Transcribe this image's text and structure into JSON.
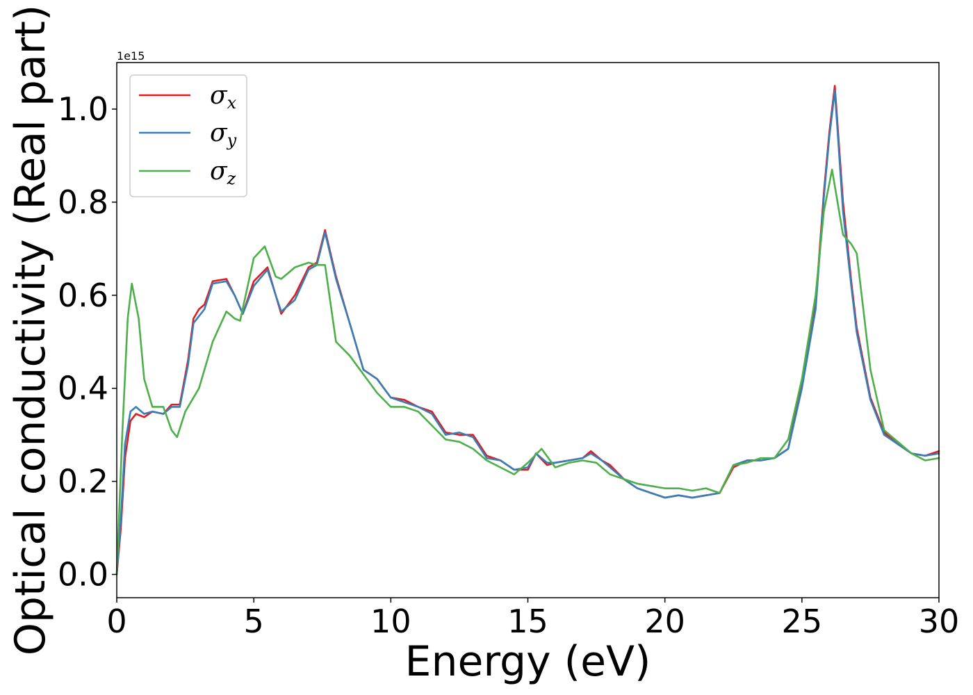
{
  "chart_data": {
    "type": "line",
    "xlabel": "Energy (eV)",
    "ylabel": "Optical conductivity (Real part)",
    "offset_text": "1e15",
    "xlim": [
      0,
      30
    ],
    "ylim": [
      -0.05,
      1.1
    ],
    "xticks": [
      0,
      5,
      10,
      15,
      20,
      25,
      30
    ],
    "xtick_labels": [
      "0",
      "5",
      "10",
      "15",
      "20",
      "25",
      "30"
    ],
    "yticks": [
      0.0,
      0.2,
      0.4,
      0.6,
      0.8,
      1.0
    ],
    "ytick_labels": [
      "0.0",
      "0.2",
      "0.4",
      "0.6",
      "0.8",
      "1.0"
    ],
    "grid": false,
    "legend_position": "upper-left",
    "series": [
      {
        "name": "σx",
        "symbol": "σ",
        "sub": "x",
        "color": "#e41a1c",
        "points": [
          [
            0,
            0.0
          ],
          [
            0.15,
            0.1
          ],
          [
            0.3,
            0.25
          ],
          [
            0.5,
            0.33
          ],
          [
            0.7,
            0.345
          ],
          [
            1.0,
            0.338
          ],
          [
            1.3,
            0.35
          ],
          [
            1.7,
            0.345
          ],
          [
            2.0,
            0.365
          ],
          [
            2.3,
            0.365
          ],
          [
            2.6,
            0.46
          ],
          [
            2.8,
            0.55
          ],
          [
            3.0,
            0.57
          ],
          [
            3.2,
            0.58
          ],
          [
            3.5,
            0.63
          ],
          [
            4.0,
            0.635
          ],
          [
            4.3,
            0.6
          ],
          [
            4.6,
            0.56
          ],
          [
            5.0,
            0.63
          ],
          [
            5.5,
            0.66
          ],
          [
            5.8,
            0.6
          ],
          [
            6.0,
            0.56
          ],
          [
            6.5,
            0.6
          ],
          [
            7.0,
            0.66
          ],
          [
            7.3,
            0.67
          ],
          [
            7.6,
            0.74
          ],
          [
            8.0,
            0.64
          ],
          [
            8.5,
            0.54
          ],
          [
            9.0,
            0.44
          ],
          [
            9.5,
            0.42
          ],
          [
            10.0,
            0.38
          ],
          [
            10.5,
            0.375
          ],
          [
            11.0,
            0.36
          ],
          [
            11.5,
            0.35
          ],
          [
            12.0,
            0.305
          ],
          [
            12.5,
            0.3
          ],
          [
            13.0,
            0.3
          ],
          [
            13.5,
            0.255
          ],
          [
            14.0,
            0.245
          ],
          [
            14.5,
            0.225
          ],
          [
            15.0,
            0.225
          ],
          [
            15.3,
            0.26
          ],
          [
            15.7,
            0.235
          ],
          [
            16.0,
            0.24
          ],
          [
            16.5,
            0.245
          ],
          [
            17.0,
            0.25
          ],
          [
            17.3,
            0.265
          ],
          [
            17.7,
            0.245
          ],
          [
            18.0,
            0.235
          ],
          [
            18.5,
            0.205
          ],
          [
            19.0,
            0.185
          ],
          [
            19.5,
            0.175
          ],
          [
            20.0,
            0.165
          ],
          [
            20.5,
            0.17
          ],
          [
            21.0,
            0.165
          ],
          [
            21.5,
            0.17
          ],
          [
            22.0,
            0.175
          ],
          [
            22.5,
            0.23
          ],
          [
            23.0,
            0.245
          ],
          [
            23.5,
            0.245
          ],
          [
            24.0,
            0.25
          ],
          [
            24.5,
            0.27
          ],
          [
            25.0,
            0.41
          ],
          [
            25.5,
            0.58
          ],
          [
            25.8,
            0.82
          ],
          [
            26.0,
            0.95
          ],
          [
            26.2,
            1.05
          ],
          [
            26.5,
            0.8
          ],
          [
            26.8,
            0.63
          ],
          [
            27.0,
            0.53
          ],
          [
            27.5,
            0.38
          ],
          [
            28.0,
            0.305
          ],
          [
            28.5,
            0.28
          ],
          [
            29.0,
            0.26
          ],
          [
            29.5,
            0.255
          ],
          [
            30.0,
            0.265
          ]
        ]
      },
      {
        "name": "σy",
        "symbol": "σ",
        "sub": "y",
        "color": "#377eb8",
        "points": [
          [
            0,
            0.0
          ],
          [
            0.15,
            0.12
          ],
          [
            0.3,
            0.28
          ],
          [
            0.5,
            0.35
          ],
          [
            0.7,
            0.36
          ],
          [
            1.0,
            0.345
          ],
          [
            1.3,
            0.35
          ],
          [
            1.7,
            0.345
          ],
          [
            2.0,
            0.36
          ],
          [
            2.3,
            0.36
          ],
          [
            2.6,
            0.45
          ],
          [
            2.8,
            0.54
          ],
          [
            3.0,
            0.555
          ],
          [
            3.2,
            0.57
          ],
          [
            3.5,
            0.625
          ],
          [
            4.0,
            0.63
          ],
          [
            4.3,
            0.6
          ],
          [
            4.6,
            0.56
          ],
          [
            5.0,
            0.62
          ],
          [
            5.5,
            0.655
          ],
          [
            5.8,
            0.6
          ],
          [
            6.0,
            0.565
          ],
          [
            6.5,
            0.59
          ],
          [
            7.0,
            0.655
          ],
          [
            7.3,
            0.665
          ],
          [
            7.6,
            0.735
          ],
          [
            8.0,
            0.635
          ],
          [
            8.5,
            0.54
          ],
          [
            9.0,
            0.44
          ],
          [
            9.5,
            0.42
          ],
          [
            10.0,
            0.38
          ],
          [
            10.5,
            0.37
          ],
          [
            11.0,
            0.36
          ],
          [
            11.5,
            0.345
          ],
          [
            12.0,
            0.3
          ],
          [
            12.5,
            0.305
          ],
          [
            13.0,
            0.295
          ],
          [
            13.5,
            0.25
          ],
          [
            14.0,
            0.245
          ],
          [
            14.5,
            0.225
          ],
          [
            15.0,
            0.23
          ],
          [
            15.3,
            0.26
          ],
          [
            15.7,
            0.24
          ],
          [
            16.0,
            0.24
          ],
          [
            16.5,
            0.245
          ],
          [
            17.0,
            0.25
          ],
          [
            17.3,
            0.26
          ],
          [
            17.7,
            0.245
          ],
          [
            18.0,
            0.23
          ],
          [
            18.5,
            0.205
          ],
          [
            19.0,
            0.185
          ],
          [
            19.5,
            0.175
          ],
          [
            20.0,
            0.165
          ],
          [
            20.5,
            0.17
          ],
          [
            21.0,
            0.165
          ],
          [
            21.5,
            0.17
          ],
          [
            22.0,
            0.175
          ],
          [
            22.5,
            0.235
          ],
          [
            23.0,
            0.245
          ],
          [
            23.5,
            0.245
          ],
          [
            24.0,
            0.25
          ],
          [
            24.5,
            0.27
          ],
          [
            25.0,
            0.4
          ],
          [
            25.5,
            0.57
          ],
          [
            25.8,
            0.81
          ],
          [
            26.0,
            0.94
          ],
          [
            26.2,
            1.04
          ],
          [
            26.5,
            0.78
          ],
          [
            26.8,
            0.62
          ],
          [
            27.0,
            0.52
          ],
          [
            27.5,
            0.375
          ],
          [
            28.0,
            0.3
          ],
          [
            28.5,
            0.28
          ],
          [
            29.0,
            0.26
          ],
          [
            29.5,
            0.255
          ],
          [
            30.0,
            0.26
          ]
        ]
      },
      {
        "name": "σz",
        "symbol": "σ",
        "sub": "z",
        "color": "#4daf4a",
        "points": [
          [
            0,
            0.0
          ],
          [
            0.2,
            0.3
          ],
          [
            0.4,
            0.55
          ],
          [
            0.55,
            0.625
          ],
          [
            0.8,
            0.55
          ],
          [
            1.0,
            0.42
          ],
          [
            1.3,
            0.36
          ],
          [
            1.7,
            0.36
          ],
          [
            2.0,
            0.31
          ],
          [
            2.2,
            0.295
          ],
          [
            2.5,
            0.35
          ],
          [
            3.0,
            0.4
          ],
          [
            3.5,
            0.5
          ],
          [
            4.0,
            0.565
          ],
          [
            4.3,
            0.55
          ],
          [
            4.5,
            0.545
          ],
          [
            5.0,
            0.68
          ],
          [
            5.4,
            0.705
          ],
          [
            5.8,
            0.64
          ],
          [
            6.0,
            0.635
          ],
          [
            6.5,
            0.66
          ],
          [
            7.0,
            0.67
          ],
          [
            7.3,
            0.665
          ],
          [
            7.6,
            0.665
          ],
          [
            8.0,
            0.5
          ],
          [
            8.5,
            0.47
          ],
          [
            9.0,
            0.43
          ],
          [
            9.5,
            0.39
          ],
          [
            10.0,
            0.36
          ],
          [
            10.5,
            0.36
          ],
          [
            11.0,
            0.35
          ],
          [
            11.5,
            0.32
          ],
          [
            12.0,
            0.29
          ],
          [
            12.5,
            0.285
          ],
          [
            13.0,
            0.27
          ],
          [
            13.5,
            0.245
          ],
          [
            14.0,
            0.23
          ],
          [
            14.5,
            0.215
          ],
          [
            15.0,
            0.24
          ],
          [
            15.5,
            0.27
          ],
          [
            16.0,
            0.23
          ],
          [
            16.5,
            0.24
          ],
          [
            17.0,
            0.245
          ],
          [
            17.5,
            0.24
          ],
          [
            18.0,
            0.215
          ],
          [
            18.5,
            0.205
          ],
          [
            19.0,
            0.195
          ],
          [
            19.5,
            0.19
          ],
          [
            20.0,
            0.185
          ],
          [
            20.5,
            0.185
          ],
          [
            21.0,
            0.18
          ],
          [
            21.5,
            0.185
          ],
          [
            22.0,
            0.175
          ],
          [
            22.5,
            0.235
          ],
          [
            23.0,
            0.24
          ],
          [
            23.5,
            0.25
          ],
          [
            24.0,
            0.25
          ],
          [
            24.5,
            0.29
          ],
          [
            25.0,
            0.42
          ],
          [
            25.5,
            0.6
          ],
          [
            25.8,
            0.78
          ],
          [
            26.1,
            0.87
          ],
          [
            26.5,
            0.73
          ],
          [
            26.8,
            0.71
          ],
          [
            27.0,
            0.69
          ],
          [
            27.5,
            0.44
          ],
          [
            28.0,
            0.31
          ],
          [
            28.5,
            0.285
          ],
          [
            29.0,
            0.26
          ],
          [
            29.5,
            0.245
          ],
          [
            30.0,
            0.25
          ]
        ]
      }
    ]
  }
}
